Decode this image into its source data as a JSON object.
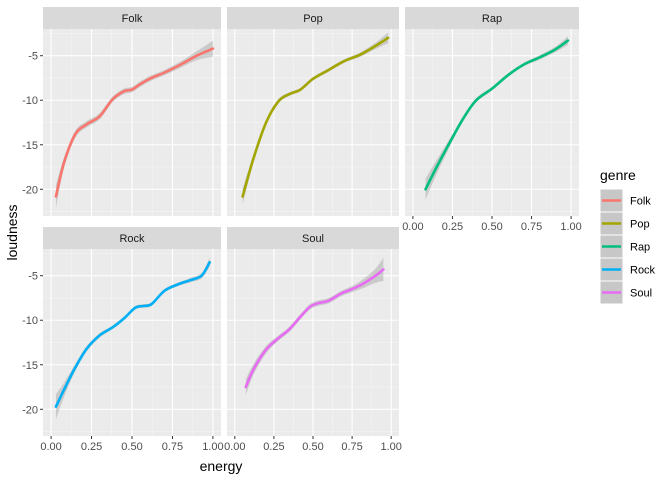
{
  "chart_data": {
    "type": "line",
    "facet_variable": "genre",
    "xlabel": "energy",
    "ylabel": "loudness",
    "xlim": [
      0.0,
      1.0
    ],
    "ylim": [
      -23,
      -2
    ],
    "x_ticks": [
      0.0,
      0.25,
      0.5,
      0.75,
      1.0
    ],
    "x_tick_labels": [
      "0.00",
      "0.25",
      "0.50",
      "0.75",
      "1.00"
    ],
    "y_ticks": [
      -20,
      -15,
      -10,
      -5
    ],
    "y_tick_labels": [
      "-20",
      "-15",
      "-10",
      "-5"
    ],
    "grid": true,
    "smoothing_band": true,
    "legend": {
      "title": "genre",
      "position": "right"
    },
    "series": [
      {
        "name": "Folk",
        "color": "#F8766D",
        "x": [
          0.03,
          0.08,
          0.15,
          0.22,
          0.3,
          0.38,
          0.45,
          0.5,
          0.55,
          0.62,
          0.7,
          0.8,
          0.9,
          1.0
        ],
        "y": [
          -20.8,
          -17.0,
          -13.8,
          -12.7,
          -11.8,
          -9.9,
          -9.0,
          -8.8,
          -8.2,
          -7.5,
          -6.9,
          -6.0,
          -5.0,
          -4.2
        ],
        "ci_halfwidth": [
          1.3,
          0.6,
          0.4,
          0.35,
          0.35,
          0.3,
          0.3,
          0.3,
          0.3,
          0.3,
          0.3,
          0.35,
          0.5,
          0.9
        ]
      },
      {
        "name": "Pop",
        "color": "#A3A500",
        "x": [
          0.05,
          0.12,
          0.2,
          0.28,
          0.35,
          0.42,
          0.5,
          0.6,
          0.7,
          0.8,
          0.9,
          0.98
        ],
        "y": [
          -20.8,
          -16.5,
          -12.5,
          -10.1,
          -9.3,
          -8.8,
          -7.6,
          -6.6,
          -5.6,
          -4.9,
          -3.9,
          -3.0
        ],
        "ci_halfwidth": [
          0.9,
          0.45,
          0.3,
          0.25,
          0.2,
          0.2,
          0.2,
          0.2,
          0.2,
          0.25,
          0.35,
          0.6
        ]
      },
      {
        "name": "Rap",
        "color": "#00BF7D",
        "x": [
          0.08,
          0.15,
          0.25,
          0.32,
          0.4,
          0.5,
          0.6,
          0.7,
          0.8,
          0.9,
          0.98
        ],
        "y": [
          -20.0,
          -17.5,
          -14.2,
          -12.0,
          -10.0,
          -8.7,
          -7.2,
          -6.0,
          -5.2,
          -4.3,
          -3.3
        ],
        "ci_halfwidth": [
          1.2,
          0.8,
          0.4,
          0.3,
          0.25,
          0.2,
          0.2,
          0.2,
          0.25,
          0.3,
          0.5
        ]
      },
      {
        "name": "Rock",
        "color": "#00B0F6",
        "x": [
          0.03,
          0.08,
          0.15,
          0.22,
          0.3,
          0.38,
          0.45,
          0.52,
          0.57,
          0.62,
          0.7,
          0.78,
          0.86,
          0.93,
          0.98
        ],
        "y": [
          -19.7,
          -17.8,
          -15.3,
          -13.2,
          -11.7,
          -10.8,
          -9.8,
          -8.6,
          -8.4,
          -8.2,
          -6.7,
          -6.0,
          -5.5,
          -5.0,
          -3.5
        ],
        "ci_halfwidth": [
          1.4,
          0.8,
          0.4,
          0.3,
          0.25,
          0.2,
          0.2,
          0.2,
          0.2,
          0.2,
          0.2,
          0.2,
          0.25,
          0.3,
          0.5
        ]
      },
      {
        "name": "Soul",
        "color": "#E76BF3",
        "x": [
          0.07,
          0.12,
          0.2,
          0.28,
          0.35,
          0.42,
          0.48,
          0.53,
          0.6,
          0.68,
          0.75,
          0.82,
          0.9,
          0.95
        ],
        "y": [
          -17.5,
          -15.5,
          -13.3,
          -12.0,
          -11.0,
          -9.6,
          -8.5,
          -8.1,
          -7.8,
          -7.0,
          -6.5,
          -5.9,
          -5.0,
          -4.3
        ],
        "ci_halfwidth": [
          0.9,
          0.6,
          0.4,
          0.3,
          0.3,
          0.3,
          0.3,
          0.3,
          0.3,
          0.3,
          0.35,
          0.5,
          0.8,
          1.3
        ]
      }
    ]
  },
  "colors": {
    "panel_background": "#EBEBEB",
    "strip_background": "#D9D9D9",
    "grid_major": "#FFFFFF",
    "band_fill": "#999999"
  }
}
